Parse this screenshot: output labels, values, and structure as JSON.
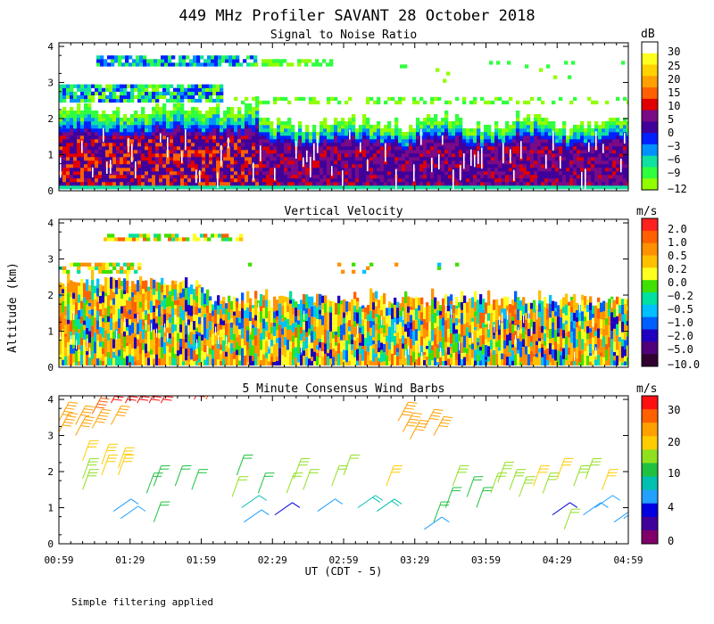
{
  "title": "449 MHz Profiler SAVANT 28 October 2018",
  "ylabel": "Altitude (km)",
  "xlabel": "UT  (CDT - 5)",
  "footnote": "Simple filtering applied",
  "x_ticks": [
    "00:59",
    "01:29",
    "01:59",
    "02:29",
    "02:59",
    "03:29",
    "03:59",
    "04:29",
    "04:59"
  ],
  "y_ticks": [
    "0",
    "1",
    "2",
    "3",
    "4"
  ],
  "chart_data": [
    {
      "type": "heatmap",
      "title": "Signal to Noise Ratio",
      "units": "dB",
      "x_range": [
        "00:59",
        "04:59"
      ],
      "ylim": [
        0,
        4.1
      ],
      "colorbar": {
        "ticks": [
          "30",
          "25",
          "20",
          "15",
          "10",
          "5",
          "0",
          "−3",
          "−6",
          "−9",
          "−12"
        ],
        "colors": [
          "#ffffff",
          "#ffff1f",
          "#ffd200",
          "#ffa000",
          "#ff6000",
          "#e00000",
          "#7a0a86",
          "#40009a",
          "#0020ff",
          "#0090ff",
          "#10e0a0",
          "#30ff40",
          "#90ff00"
        ]
      },
      "layers": [
        {
          "alt_km": [
            0,
            1.5
          ],
          "class": "0 to 10 dB"
        },
        {
          "alt_km": [
            1.5,
            2.3
          ],
          "class": "-12 to -3 dB"
        },
        {
          "alt_km": [
            2.4,
            2.9
          ],
          "class": "-12 to -3 dB"
        },
        {
          "alt_km": [
            3.5,
            3.7
          ],
          "class": "-12 to -3 dB"
        }
      ]
    },
    {
      "type": "heatmap",
      "title": "Vertical Velocity",
      "units": "m/s",
      "x_range": [
        "00:59",
        "04:59"
      ],
      "ylim": [
        0,
        4.1
      ],
      "colorbar": {
        "ticks": [
          "2.0",
          "1.0",
          "0.5",
          "0.2",
          "0.0",
          "−0.2",
          "−0.5",
          "−1.0",
          "−2.0",
          "−5.0",
          "−10.0"
        ],
        "colors": [
          "#ff2020",
          "#ff6000",
          "#ff9000",
          "#ffc000",
          "#ffff20",
          "#40e000",
          "#00e0a0",
          "#00c0ff",
          "#0060ff",
          "#2000c0",
          "#50007a",
          "#300030"
        ]
      }
    },
    {
      "type": "barbs",
      "title": "5 Minute Consensus Wind Barbs",
      "units": "m/s",
      "x_range": [
        "00:59",
        "04:59"
      ],
      "ylim": [
        0,
        4.1
      ],
      "colorbar": {
        "ticks": [
          "30",
          "20",
          "10",
          "4",
          "0"
        ],
        "colors": [
          "#ff1010",
          "#ff6000",
          "#ffa000",
          "#ffcc00",
          "#90e020",
          "#20c040",
          "#00c0b0",
          "#20a0ff",
          "#0000e0",
          "#40009a",
          "#80006a"
        ]
      },
      "barbs": [
        {
          "t": "00:59",
          "alt": 3.4,
          "speed": 23
        },
        {
          "t": "00:59",
          "alt": 3.1,
          "speed": 23
        },
        {
          "t": "01:06",
          "alt": 3.3,
          "speed": 21
        },
        {
          "t": "01:06",
          "alt": 3.0,
          "speed": 21
        },
        {
          "t": "01:09",
          "alt": 2.3,
          "speed": 17
        },
        {
          "t": "01:09",
          "alt": 1.8,
          "speed": 14
        },
        {
          "t": "01:09",
          "alt": 1.5,
          "speed": 13
        },
        {
          "t": "01:13",
          "alt": 3.6,
          "speed": 24
        },
        {
          "t": "01:13",
          "alt": 3.2,
          "speed": 23
        },
        {
          "t": "01:17",
          "alt": 1.9,
          "speed": 16
        },
        {
          "t": "01:17",
          "alt": 2.2,
          "speed": 16
        },
        {
          "t": "01:21",
          "alt": 3.9,
          "speed": 30
        },
        {
          "t": "01:21",
          "alt": 3.3,
          "speed": 22
        },
        {
          "t": "01:24",
          "alt": 2.1,
          "speed": 17
        },
        {
          "t": "01:24",
          "alt": 1.9,
          "speed": 16
        },
        {
          "t": "01:27",
          "alt": 3.9,
          "speed": 31
        },
        {
          "t": "01:32",
          "alt": 3.9,
          "speed": 32
        },
        {
          "t": "01:37",
          "alt": 3.9,
          "speed": 30
        },
        {
          "t": "01:42",
          "alt": 3.9,
          "speed": 29
        },
        {
          "t": "01:56",
          "alt": 4.0,
          "speed": 28
        },
        {
          "t": "02:01",
          "alt": 4.0,
          "speed": 27
        },
        {
          "t": "01:22",
          "alt": 0.9,
          "speed": 6
        },
        {
          "t": "01:25",
          "alt": 0.7,
          "speed": 6
        },
        {
          "t": "01:36",
          "alt": 1.4,
          "speed": 9
        },
        {
          "t": "01:39",
          "alt": 1.6,
          "speed": 9
        },
        {
          "t": "01:39",
          "alt": 0.6,
          "speed": 11
        },
        {
          "t": "01:48",
          "alt": 1.6,
          "speed": 10
        },
        {
          "t": "01:55",
          "alt": 1.5,
          "speed": 10
        },
        {
          "t": "02:14",
          "alt": 1.9,
          "speed": 10
        },
        {
          "t": "02:12",
          "alt": 1.3,
          "speed": 12
        },
        {
          "t": "02:16",
          "alt": 1.0,
          "speed": 7
        },
        {
          "t": "02:17",
          "alt": 0.6,
          "speed": 5
        },
        {
          "t": "02:23",
          "alt": 1.4,
          "speed": 9
        },
        {
          "t": "02:30",
          "alt": 0.8,
          "speed": 4
        },
        {
          "t": "02:35",
          "alt": 1.4,
          "speed": 12
        },
        {
          "t": "02:38",
          "alt": 1.8,
          "speed": 14
        },
        {
          "t": "02:42",
          "alt": 1.5,
          "speed": 12
        },
        {
          "t": "02:48",
          "alt": 0.9,
          "speed": 5
        },
        {
          "t": "02:54",
          "alt": 1.6,
          "speed": 12
        },
        {
          "t": "02:59",
          "alt": 1.9,
          "speed": 12
        },
        {
          "t": "03:05",
          "alt": 1.0,
          "speed": 8
        },
        {
          "t": "03:13",
          "alt": 0.9,
          "speed": 8
        },
        {
          "t": "03:17",
          "alt": 1.6,
          "speed": 17
        },
        {
          "t": "03:22",
          "alt": 3.4,
          "speed": 23
        },
        {
          "t": "03:24",
          "alt": 3.1,
          "speed": 23
        },
        {
          "t": "03:27",
          "alt": 2.9,
          "speed": 22
        },
        {
          "t": "03:33",
          "alt": 3.2,
          "speed": 22
        },
        {
          "t": "03:37",
          "alt": 3.0,
          "speed": 22
        },
        {
          "t": "03:33",
          "alt": 0.4,
          "speed": 6
        },
        {
          "t": "03:37",
          "alt": 0.6,
          "speed": 10
        },
        {
          "t": "03:42",
          "alt": 1.0,
          "speed": 9
        },
        {
          "t": "03:45",
          "alt": 1.6,
          "speed": 13
        },
        {
          "t": "03:51",
          "alt": 1.3,
          "speed": 11
        },
        {
          "t": "03:55",
          "alt": 1.0,
          "speed": 10
        },
        {
          "t": "04:01",
          "alt": 1.4,
          "speed": 12
        },
        {
          "t": "04:04",
          "alt": 1.7,
          "speed": 14
        },
        {
          "t": "04:09",
          "alt": 1.5,
          "speed": 15
        },
        {
          "t": "04:13",
          "alt": 1.3,
          "speed": 13
        },
        {
          "t": "04:19",
          "alt": 1.6,
          "speed": 16
        },
        {
          "t": "04:23",
          "alt": 1.4,
          "speed": 15
        },
        {
          "t": "04:27",
          "alt": 0.8,
          "speed": 4
        },
        {
          "t": "04:29",
          "alt": 1.8,
          "speed": 16
        },
        {
          "t": "04:32",
          "alt": 0.4,
          "speed": 12
        },
        {
          "t": "04:36",
          "alt": 1.6,
          "speed": 15
        },
        {
          "t": "04:40",
          "alt": 0.8,
          "speed": 6
        },
        {
          "t": "04:41",
          "alt": 1.8,
          "speed": 15
        },
        {
          "t": "04:45",
          "alt": 1.0,
          "speed": 6
        },
        {
          "t": "04:48",
          "alt": 1.5,
          "speed": 16
        },
        {
          "t": "04:53",
          "alt": 0.6,
          "speed": 5
        },
        {
          "t": "04:57",
          "alt": 0.7,
          "speed": 5
        }
      ]
    }
  ]
}
